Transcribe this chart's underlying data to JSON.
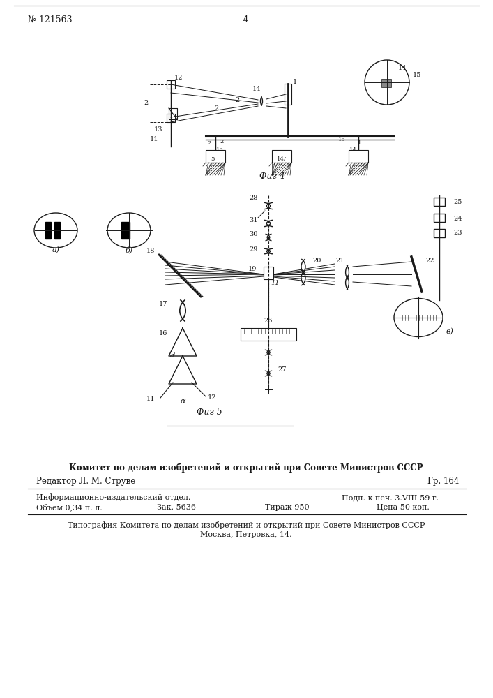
{
  "page_number_left": "№ 121563",
  "page_number_center": "— 4 —",
  "fig4_label": "Фиг 4",
  "fig5_label": "Фиг 5",
  "footer_bold": "Комитет по делам изобретений и открытий при Совете Министров СССР",
  "footer_editor": "Редактор Л. М. Струве",
  "footer_gr": "Гр. 164",
  "footer_info1": "Информационно-издательский отдел.",
  "footer_podp": "Подп. к печ. 3.VIII-59 г.",
  "footer_obem": "Объем 0,34 п. л.",
  "footer_zak": "Зак. 5636",
  "footer_tiraj": "Тираж 950",
  "footer_cena": "Цена 50 коп.",
  "footer_tipografia": "Типография Комитета по делам изобретений и открытий при Совете Министров СССР",
  "footer_moskva": "Москва, Петровка, 14.",
  "bg_color": "#ffffff",
  "text_color": "#1a1a1a",
  "line_color": "#1a1a1a"
}
